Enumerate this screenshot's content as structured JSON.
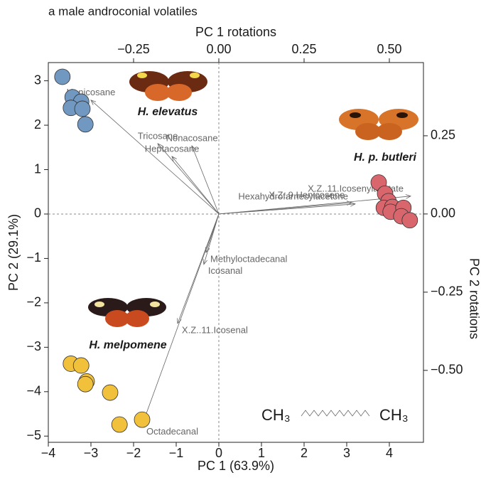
{
  "chart_data": {
    "type": "scatter",
    "title": "a male androconial volatiles",
    "x_label": "PC 1 (63.9%)",
    "y_label": "PC 2 (29.1%)",
    "x2_label": "PC 1 rotations",
    "y2_label": "PC 2 rotations",
    "xlim": [
      -4,
      4.8
    ],
    "ylim": [
      -5.14,
      3.41
    ],
    "x2lim": [
      -0.5,
      0.6
    ],
    "y2lim": [
      -0.73,
      0.484
    ],
    "xticks": [
      {
        "value": -4,
        "label": "−4"
      },
      {
        "value": -3,
        "label": "−3"
      },
      {
        "value": -2,
        "label": "−2"
      },
      {
        "value": -1,
        "label": "−1"
      },
      0,
      1,
      2,
      3,
      4
    ],
    "yticks": [
      {
        "value": -5,
        "label": "−5"
      },
      {
        "value": -4,
        "label": "−4"
      },
      {
        "value": -3,
        "label": "−3"
      },
      {
        "value": -2,
        "label": "−2"
      },
      {
        "value": -1,
        "label": "−1"
      },
      0,
      1,
      2,
      3
    ],
    "x2ticks": [
      {
        "value": -0.25,
        "label": "−0.25"
      },
      {
        "value": 0,
        "label": "0.00"
      },
      {
        "value": 0.25,
        "label": "0.25"
      },
      {
        "value": 0.5,
        "label": "0.50"
      }
    ],
    "y2ticks": [
      {
        "value": 0.25,
        "label": "0.25"
      },
      {
        "value": 0,
        "label": "0.00"
      },
      {
        "value": -0.25,
        "label": "−0.25"
      },
      {
        "value": -0.5,
        "label": "−0.50"
      }
    ],
    "series": [
      {
        "name": "H. elevatus",
        "color": "#7198c0",
        "x": [
          -3.67,
          -3.43,
          -3.23,
          -3.47,
          -3.2,
          -3.13
        ],
        "y": [
          3.09,
          2.63,
          2.53,
          2.39,
          2.37,
          2.02
        ]
      },
      {
        "name": "H. p. butleri",
        "color": "#d9666d",
        "x": [
          3.75,
          3.9,
          3.98,
          3.87,
          4.07,
          4.03,
          4.33,
          4.28,
          4.48
        ],
        "y": [
          0.71,
          0.46,
          0.29,
          0.14,
          0.16,
          0.05,
          0.14,
          -0.05,
          -0.14
        ]
      },
      {
        "name": "H. melpomene",
        "color": "#f2c13c",
        "x": [
          -3.47,
          -3.23,
          -3.1,
          -3.13,
          -2.55,
          -2.33,
          -1.8
        ],
        "y": [
          -3.37,
          -3.41,
          -3.77,
          -3.83,
          -4.02,
          -4.74,
          -4.63
        ]
      }
    ],
    "loadings": [
      {
        "label": "Henicosane",
        "x": -0.375,
        "y": 0.364
      },
      {
        "label": "Tricosane",
        "x": -0.179,
        "y": 0.225
      },
      {
        "label": "Heptacosane",
        "x": -0.1375,
        "y": 0.184
      },
      {
        "label": "Nonacosane",
        "x": -0.079,
        "y": 0.218
      },
      {
        "label": "X.Z..11.Icosenylacetate",
        "x": 0.5625,
        "y": 0.057
      },
      {
        "label": "X.Z..9.Henicosene",
        "x": 0.39,
        "y": 0.036
      },
      {
        "label": "Hexahydrofarnesylacetone",
        "x": 0.4,
        "y": 0.032
      },
      {
        "label": "Methyloctadecanal",
        "x": -0.0375,
        "y": -0.123
      },
      {
        "label": "Icosanal",
        "x": -0.044,
        "y": -0.161
      },
      {
        "label": "X.Z..11.Icosenal",
        "x": -0.121,
        "y": -0.35
      },
      {
        "label": "Octadecanal",
        "x": -0.225,
        "y": -0.675
      }
    ],
    "formula": [
      "CH₃",
      "CH₃"
    ]
  }
}
